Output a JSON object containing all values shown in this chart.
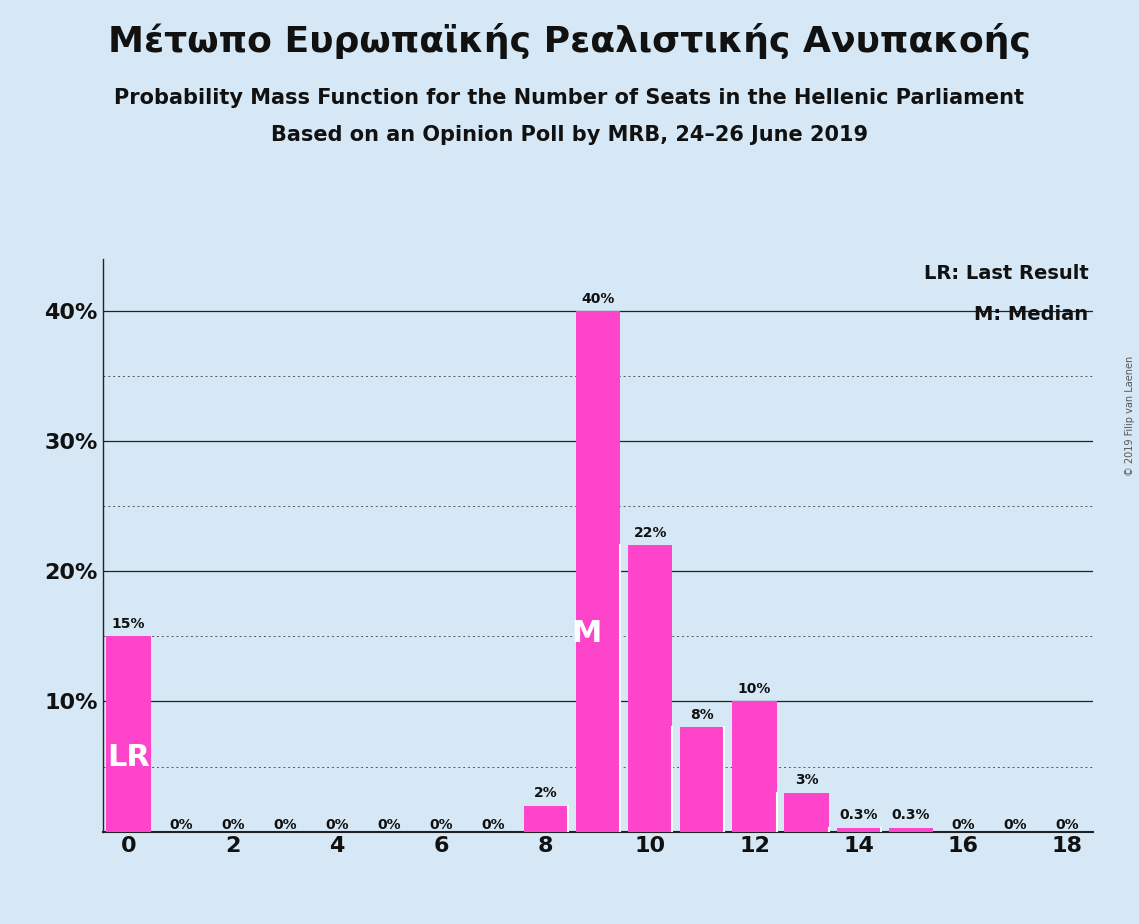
{
  "title1": "Μέτωπο Ευρωπαϊκής Ρεαλιστικής Ανυπακοής",
  "title2": "Probability Mass Function for the Number of Seats in the Hellenic Parliament",
  "title3": "Based on an Opinion Poll by MRB, 24–26 June 2019",
  "copyright": "© 2019 Filip van Laenen",
  "seats": [
    0,
    1,
    2,
    3,
    4,
    5,
    6,
    7,
    8,
    9,
    10,
    11,
    12,
    13,
    14,
    15,
    16,
    17,
    18
  ],
  "probabilities": [
    15,
    0,
    0,
    0,
    0,
    0,
    0,
    0,
    2,
    40,
    22,
    8,
    10,
    3,
    0.3,
    0.3,
    0,
    0,
    0
  ],
  "bar_color": "#FF44CC",
  "background_color": "#D6E8F5",
  "text_color": "#111111",
  "lr_seat": 0,
  "median_seat": 9,
  "legend_lr": "LR: Last Result",
  "legend_m": "M: Median",
  "ytick_major": [
    0,
    10,
    20,
    30,
    40
  ],
  "ytick_major_labels": [
    "",
    "10%",
    "20%",
    "30%",
    "40%"
  ],
  "ytick_minor": [
    5,
    15,
    25,
    35
  ],
  "xticks": [
    0,
    2,
    4,
    6,
    8,
    10,
    12,
    14,
    16,
    18
  ],
  "ylim": [
    0,
    44
  ],
  "xlim": [
    -0.5,
    18.5
  ],
  "title1_fontsize": 26,
  "title2_fontsize": 15,
  "title3_fontsize": 15,
  "ytick_fontsize": 16,
  "xtick_fontsize": 16,
  "legend_fontsize": 14,
  "bar_label_fontsize": 10,
  "lr_label_fontsize": 22,
  "m_label_fontsize": 22
}
